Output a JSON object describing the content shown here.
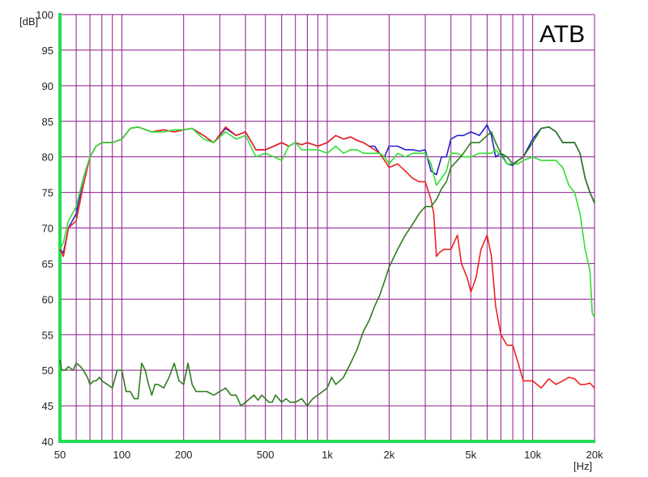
{
  "chart_data": {
    "type": "line",
    "title": "",
    "badge": "ATB",
    "ylabel": "[dB]",
    "xlabel": "[Hz]",
    "xscale": "log",
    "xlim": [
      50,
      20000
    ],
    "ylim": [
      40,
      100
    ],
    "grid": true,
    "legend": "none",
    "colors": {
      "grid": "#8b1a8b",
      "axis": "#22dd55",
      "background": "#ffffff",
      "red": "#ee2222",
      "blue": "#2222cc",
      "light_green": "#33dd33",
      "dark_green": "#2e7d1f"
    },
    "y_ticks": [
      40,
      45,
      50,
      55,
      60,
      65,
      70,
      75,
      80,
      85,
      90,
      95,
      100
    ],
    "x_ticks": [
      {
        "value": 50,
        "label": "50"
      },
      {
        "value": 100,
        "label": "100"
      },
      {
        "value": 200,
        "label": "200"
      },
      {
        "value": 500,
        "label": "500"
      },
      {
        "value": 1000,
        "label": "1k"
      },
      {
        "value": 2000,
        "label": "2k"
      },
      {
        "value": 5000,
        "label": "5k"
      },
      {
        "value": 10000,
        "label": "10k"
      },
      {
        "value": 20000,
        "label": "20k"
      }
    ],
    "series": [
      {
        "color": "#2222cc",
        "x": [
          50,
          52,
          55,
          60,
          65,
          70,
          75,
          80,
          90,
          100,
          110,
          120,
          140,
          160,
          180,
          200,
          220,
          250,
          280,
          320,
          360,
          400,
          450,
          500,
          550,
          600,
          650,
          700,
          750,
          800,
          900,
          1000,
          1100,
          1200,
          1300,
          1400,
          1500,
          1600,
          1700,
          1800,
          1900,
          2000,
          2200,
          2400,
          2600,
          2800,
          3000,
          3200,
          3400,
          3600,
          3800,
          4000,
          4300,
          4600,
          5000,
          5500,
          6000,
          6300,
          6600,
          7000,
          7500,
          8000,
          8500,
          9000,
          10000,
          11000,
          12000,
          13000,
          14000,
          15000,
          16000,
          17000,
          18000,
          19000,
          20000
        ],
        "y": [
          67,
          66.5,
          70,
          72,
          77,
          80,
          81.5,
          82,
          82,
          82.5,
          84,
          84.2,
          83.5,
          83.8,
          83.5,
          83.8,
          84,
          83,
          82,
          84,
          83,
          83.5,
          81,
          81,
          81.5,
          82,
          81.5,
          82,
          81.7,
          82,
          81.5,
          82,
          83,
          82.5,
          82.8,
          82.3,
          82,
          81.5,
          81.5,
          80.5,
          80,
          81.5,
          81.5,
          81,
          81,
          80.8,
          81,
          78,
          77.5,
          80,
          80,
          82.5,
          83,
          83,
          83.5,
          83,
          84.5,
          83,
          80,
          80.5,
          79,
          78.8,
          79.5,
          80,
          82.5,
          84,
          84.2,
          83.5,
          82,
          82,
          82,
          80.5,
          77,
          75,
          73.5
        ]
      },
      {
        "color": "#ee2222",
        "x": [
          50,
          52,
          55,
          60,
          65,
          70,
          75,
          80,
          90,
          100,
          110,
          120,
          140,
          160,
          180,
          200,
          220,
          250,
          280,
          320,
          360,
          400,
          450,
          500,
          550,
          600,
          650,
          700,
          750,
          800,
          900,
          1000,
          1100,
          1200,
          1300,
          1400,
          1500,
          1600,
          1700,
          1800,
          1900,
          2000,
          2200,
          2400,
          2600,
          2800,
          3000,
          3200,
          3300,
          3400,
          3500,
          3700,
          4000,
          4300,
          4500,
          4800,
          5000,
          5300,
          5600,
          6000,
          6300,
          6600,
          7000,
          7500,
          8000,
          8500,
          9000,
          9500,
          10000,
          11000,
          12000,
          13000,
          14000,
          15000,
          16000,
          17000,
          18000,
          19000,
          20000
        ],
        "y": [
          67,
          66,
          70,
          71,
          76,
          80,
          81.5,
          82,
          82,
          82.5,
          84,
          84.2,
          83.5,
          83.8,
          83.5,
          83.8,
          84,
          83,
          82,
          84.2,
          83,
          83.5,
          81,
          81,
          81.5,
          82,
          81.5,
          82,
          81.7,
          82,
          81.5,
          82,
          83,
          82.5,
          82.8,
          82.3,
          82,
          81.5,
          81,
          80.5,
          79.5,
          78.5,
          79,
          78,
          77,
          76.5,
          76.5,
          74,
          72,
          66,
          66.5,
          67,
          67,
          69,
          65,
          63,
          61,
          63,
          67,
          69,
          66,
          59,
          55,
          53.5,
          53.5,
          51,
          48.5,
          48.5,
          48.5,
          47.5,
          48.8,
          48,
          48.5,
          49,
          48.8,
          48,
          48,
          48.2,
          47.5
        ]
      },
      {
        "color": "#33dd33",
        "x": [
          50,
          52,
          55,
          60,
          65,
          70,
          75,
          80,
          90,
          100,
          110,
          120,
          140,
          160,
          180,
          200,
          220,
          250,
          280,
          320,
          360,
          400,
          450,
          500,
          550,
          600,
          650,
          700,
          750,
          800,
          900,
          1000,
          1100,
          1200,
          1300,
          1400,
          1500,
          1600,
          1700,
          1800,
          1900,
          2000,
          2200,
          2400,
          2600,
          2800,
          3000,
          3200,
          3400,
          3600,
          3800,
          4000,
          4300,
          4600,
          5000,
          5500,
          6000,
          6300,
          6600,
          7000,
          7500,
          8000,
          8500,
          9000,
          10000,
          11000,
          12000,
          13000,
          14000,
          15000,
          16000,
          17000,
          18000,
          19000,
          19500,
          20000
        ],
        "y": [
          67,
          68,
          71,
          73,
          77,
          80,
          81.5,
          82,
          82,
          82.5,
          84,
          84.2,
          83.5,
          83.5,
          83.8,
          83.8,
          84,
          82.5,
          82,
          83.5,
          82.5,
          83,
          80,
          80.5,
          80,
          79.5,
          81.5,
          82,
          81,
          81,
          81,
          80.5,
          81.5,
          80.5,
          81,
          81,
          80.5,
          80.5,
          80.5,
          80.5,
          80,
          79,
          80.5,
          80,
          80.5,
          80.5,
          80.5,
          79,
          76,
          77,
          78,
          80.5,
          80.5,
          80,
          80,
          80.5,
          80.5,
          80.5,
          81,
          80.2,
          79,
          79,
          79,
          79.5,
          80,
          79.5,
          79.5,
          79.5,
          78.5,
          76,
          75,
          72,
          67,
          64,
          58,
          57.5
        ]
      },
      {
        "color": "#2e7d1f",
        "x": [
          50,
          51,
          53,
          55,
          58,
          60,
          63,
          65,
          68,
          70,
          73,
          75,
          78,
          80,
          85,
          90,
          95,
          100,
          105,
          110,
          115,
          120,
          125,
          130,
          135,
          140,
          145,
          150,
          160,
          170,
          180,
          190,
          200,
          210,
          220,
          230,
          240,
          260,
          280,
          300,
          320,
          340,
          360,
          380,
          400,
          420,
          440,
          460,
          480,
          500,
          520,
          540,
          560,
          580,
          600,
          630,
          660,
          700,
          750,
          800,
          850,
          900,
          950,
          1000,
          1050,
          1100,
          1150,
          1200,
          1300,
          1400,
          1500,
          1600,
          1700,
          1800,
          1900,
          2000,
          2200,
          2400,
          2600,
          2800,
          3000,
          3200,
          3400,
          3600,
          3800,
          4000,
          4300,
          4600,
          5000,
          5500,
          6000,
          6300,
          6600,
          7000,
          7500,
          8000,
          8500,
          9000,
          10000,
          11000,
          12000,
          13000,
          14000,
          15000,
          16000,
          17000,
          18000,
          19000,
          20000
        ],
        "y": [
          51.5,
          50,
          50,
          50.5,
          50,
          51,
          50.5,
          50,
          49,
          48,
          48.5,
          48.5,
          49,
          48.5,
          48,
          47.5,
          50,
          50,
          47,
          47,
          46,
          46,
          51,
          50,
          48,
          46.5,
          48,
          48,
          47.5,
          49,
          51,
          48.5,
          48,
          51,
          48,
          47,
          47,
          47,
          46.5,
          47,
          47.5,
          46.5,
          46.5,
          45,
          45.5,
          46,
          46.5,
          45.8,
          46.5,
          46,
          45.5,
          45.5,
          46.5,
          46,
          45.5,
          46,
          45.5,
          45.5,
          46,
          45,
          46,
          46.5,
          47,
          47.5,
          49,
          48,
          48.5,
          49,
          51,
          53,
          55.5,
          57,
          59,
          60.5,
          62.5,
          64.5,
          67,
          69,
          70.5,
          72,
          73,
          73,
          74,
          75.5,
          76.5,
          78.5,
          79.5,
          80.5,
          82,
          82,
          83,
          83.5,
          82,
          80.5,
          80,
          79,
          79.5,
          80,
          82,
          84,
          84.2,
          83.5,
          82,
          82,
          82,
          80.5,
          77,
          75,
          73.5
        ]
      }
    ]
  }
}
